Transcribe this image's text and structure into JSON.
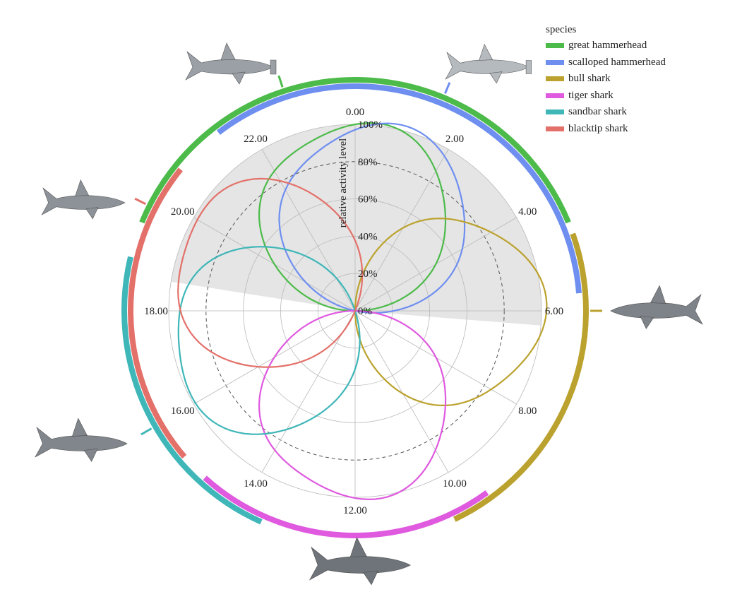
{
  "chart_data": {
    "type": "polar-line",
    "ylabel": "relative activity level",
    "radial_ticks": [
      "0%",
      "20%",
      "40%",
      "60%",
      "80%",
      "100%"
    ],
    "radial_dashed_level": 80,
    "angular_ticks": [
      "0.00",
      "2.00",
      "4.00",
      "6.00",
      "8.00",
      "10.00",
      "12.00",
      "14.00",
      "16.00",
      "18.00",
      "20.00",
      "22.00"
    ],
    "night_shading": {
      "from_hour": 6.3,
      "to_hour": 18.6,
      "color": "#e5e5e5"
    },
    "legend": {
      "title": "species",
      "placement": "top-right"
    },
    "series": [
      {
        "name": "great hammerhead",
        "color": "#4cbb4a",
        "peak_hour": 0.0,
        "peak": 100,
        "activity_arc": [
          19.5,
          4.5
        ],
        "arc_ring": "outer",
        "marker_hour": 22.8
      },
      {
        "name": "scalloped hammerhead",
        "color": "#6f8ff0",
        "peak_hour": 0.8,
        "peak": 100,
        "activity_arc": [
          21.5,
          5.7
        ],
        "arc_ring": "inner",
        "marker_hour": 1.5
      },
      {
        "name": "bull shark",
        "color": "#bba22e",
        "peak_hour": 6.0,
        "peak": 100,
        "activity_arc": [
          4.7,
          10.3
        ],
        "arc_ring": "outer",
        "marker_hour": 6.0
      },
      {
        "name": "tiger shark",
        "color": "#df5adf",
        "peak_hour": 12.0,
        "peak": 100,
        "activity_arc": [
          9.6,
          14.8
        ],
        "arc_ring": "inner",
        "marker_hour": 12.0
      },
      {
        "name": "sandbar shark",
        "color": "#3fb6b8",
        "peak_hour": 16.8,
        "peak": 100,
        "activity_arc": [
          13.6,
          18.9
        ],
        "arc_ring": "outer",
        "marker_hour": 16.0
      },
      {
        "name": "blacktip shark",
        "color": "#e3716a",
        "peak_hour": 19.5,
        "peak": 100,
        "activity_arc": [
          15.3,
          20.6
        ],
        "arc_ring": "inner",
        "marker_hour": 19.8
      }
    ]
  }
}
